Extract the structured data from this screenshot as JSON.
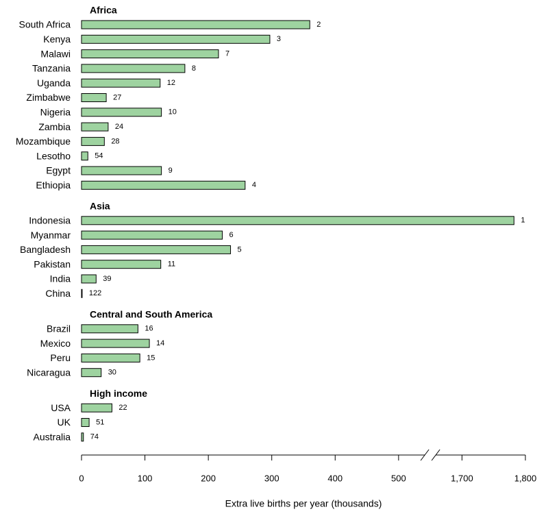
{
  "chart_data": {
    "type": "bar",
    "orientation": "horizontal",
    "x_label": "Extra live births per year (thousands)",
    "color": "#9ed3a0",
    "xlim": [
      0,
      1800
    ],
    "axis_break": [
      550,
      1650
    ],
    "xticks": [
      0,
      100,
      200,
      300,
      400,
      500,
      {
        "value": 1700,
        "label": "1,700"
      },
      {
        "value": 1800,
        "label": "1,800"
      }
    ],
    "groups": [
      {
        "name": "Africa",
        "categories": [
          "South Africa",
          "Kenya",
          "Malawi",
          "Tanzania",
          "Uganda",
          "Zimbabwe",
          "Nigeria",
          "Zambia",
          "Mozambique",
          "Lesotho",
          "Egypt",
          "Ethiopia"
        ],
        "values": [
          360,
          297,
          216,
          163,
          124,
          39,
          126,
          42,
          36,
          10,
          126,
          258
        ],
        "ranks": [
          2,
          3,
          7,
          8,
          12,
          27,
          10,
          24,
          28,
          54,
          9,
          4
        ]
      },
      {
        "name": "Asia",
        "categories": [
          "Indonesia",
          "Myanmar",
          "Bangladesh",
          "Pakistan",
          "India",
          "China"
        ],
        "values": [
          1782,
          222,
          235,
          125,
          23,
          1
        ],
        "ranks": [
          1,
          6,
          5,
          11,
          39,
          122
        ]
      },
      {
        "name": "Central and South America",
        "categories": [
          "Brazil",
          "Mexico",
          "Peru",
          "Nicaragua"
        ],
        "values": [
          89,
          107,
          92,
          31
        ],
        "ranks": [
          16,
          14,
          15,
          30
        ]
      },
      {
        "name": "High income",
        "categories": [
          "USA",
          "UK",
          "Australia"
        ],
        "values": [
          48,
          12,
          3
        ],
        "ranks": [
          22,
          51,
          74
        ]
      }
    ]
  }
}
